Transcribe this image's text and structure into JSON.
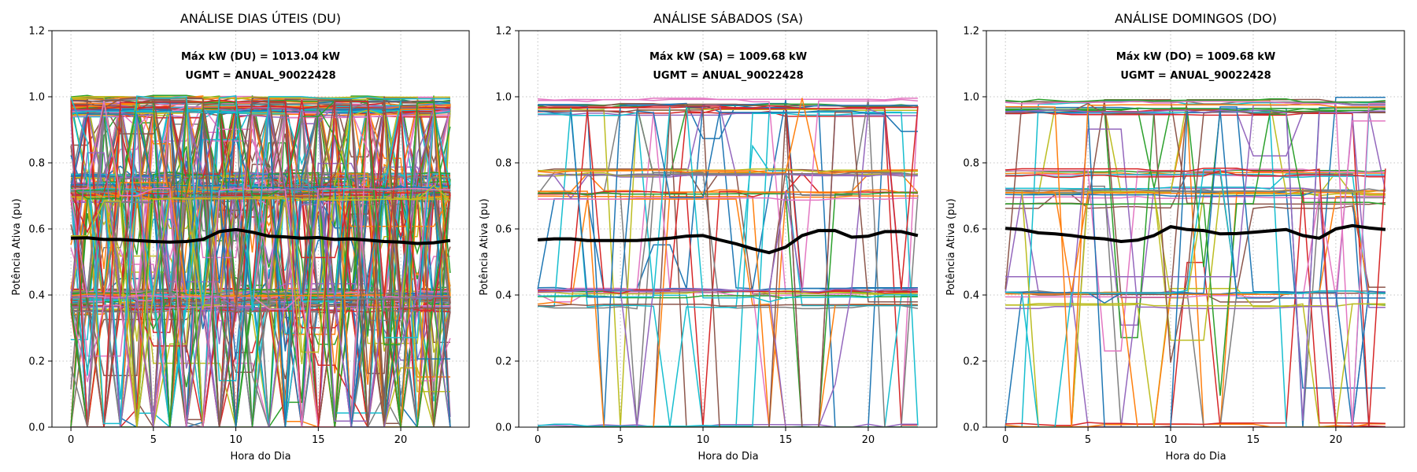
{
  "colors": {
    "palette": [
      "#1f77b4",
      "#ff7f0e",
      "#2ca02c",
      "#d62728",
      "#9467bd",
      "#8c564b",
      "#e377c2",
      "#7f7f7f",
      "#bcbd22",
      "#17becf"
    ],
    "mean_line": "#000000",
    "grid": "#b0b0b0"
  },
  "chart_data": [
    {
      "type": "line",
      "title": "ANÁLISE DIAS ÚTEIS (DU)",
      "xlabel": "Hora do Dia",
      "ylabel": "Potência Ativa (pu)",
      "xlim": [
        -1.15,
        24.15
      ],
      "ylim": [
        0,
        1.2
      ],
      "xticks": [
        0,
        5,
        10,
        15,
        20
      ],
      "yticks": [
        0.0,
        0.2,
        0.4,
        0.6,
        0.8,
        1.0,
        1.2
      ],
      "grid": true,
      "grid_style": "dotted",
      "annotations": [
        "Máx kW (DU) = 1013.04 kW",
        "UGMT = ANUAL_90022428"
      ],
      "x": [
        0,
        1,
        2,
        3,
        4,
        5,
        6,
        7,
        8,
        9,
        10,
        11,
        12,
        13,
        14,
        15,
        16,
        17,
        18,
        19,
        20,
        21,
        22,
        23
      ],
      "mean_series": {
        "color": "#000000",
        "values": [
          0.572,
          0.573,
          0.568,
          0.568,
          0.565,
          0.562,
          0.56,
          0.562,
          0.568,
          0.592,
          0.598,
          0.59,
          0.578,
          0.576,
          0.572,
          0.574,
          0.568,
          0.57,
          0.566,
          0.562,
          0.56,
          0.556,
          0.558,
          0.565
        ]
      },
      "background_series": {
        "count": 260,
        "levels": [
          0.99,
          0.97,
          0.96,
          0.95,
          0.76,
          0.73,
          0.72,
          0.71,
          0.7,
          0.69,
          0.41,
          0.4,
          0.39,
          0.37,
          0.36
        ],
        "behavior": "mostly flat at one level, with frequent jumps to other levels or to 0"
      }
    },
    {
      "type": "line",
      "title": "ANÁLISE SÁBADOS (SA)",
      "xlabel": "Hora do Dia",
      "ylabel": "Potência Ativa (pu)",
      "xlim": [
        -1.15,
        24.15
      ],
      "ylim": [
        0,
        1.2
      ],
      "xticks": [
        0,
        5,
        10,
        15,
        20
      ],
      "yticks": [
        0.0,
        0.2,
        0.4,
        0.6,
        0.8,
        1.0,
        1.2
      ],
      "grid": true,
      "grid_style": "dotted",
      "annotations": [
        "Máx kW (SA) = 1009.68 kW",
        "UGMT = ANUAL_90022428"
      ],
      "x": [
        0,
        1,
        2,
        3,
        4,
        5,
        6,
        7,
        8,
        9,
        10,
        11,
        12,
        13,
        14,
        15,
        16,
        17,
        18,
        19,
        20,
        21,
        22,
        23
      ],
      "mean_series": {
        "color": "#000000",
        "values": [
          0.567,
          0.57,
          0.57,
          0.565,
          0.565,
          0.565,
          0.565,
          0.568,
          0.572,
          0.578,
          0.58,
          0.567,
          0.555,
          0.54,
          0.528,
          0.545,
          0.58,
          0.595,
          0.595,
          0.575,
          0.578,
          0.592,
          0.592,
          0.58
        ]
      },
      "background_series": {
        "count": 55,
        "levels": [
          0.99,
          0.97,
          0.96,
          0.95,
          0.77,
          0.71,
          0.7,
          0.41,
          0.4,
          0.37,
          0.0
        ],
        "behavior": "mostly flat at one level, with occasional jumps to other levels or to 0"
      }
    },
    {
      "type": "line",
      "title": "ANÁLISE DOMINGOS (DO)",
      "xlabel": "Hora do Dia",
      "ylabel": "Potência Ativa (pu)",
      "xlim": [
        -1.15,
        24.15
      ],
      "ylim": [
        0,
        1.2
      ],
      "xticks": [
        0,
        5,
        10,
        15,
        20
      ],
      "yticks": [
        0.0,
        0.2,
        0.4,
        0.6,
        0.8,
        1.0,
        1.2
      ],
      "grid": true,
      "grid_style": "dotted",
      "annotations": [
        "Máx kW (DO) = 1009.68 kW",
        "UGMT = ANUAL_90022428"
      ],
      "x": [
        0,
        1,
        2,
        3,
        4,
        5,
        6,
        7,
        8,
        9,
        10,
        11,
        12,
        13,
        14,
        15,
        16,
        17,
        18,
        19,
        20,
        21,
        22,
        23
      ],
      "mean_series": {
        "color": "#000000",
        "values": [
          0.602,
          0.598,
          0.588,
          0.585,
          0.58,
          0.573,
          0.57,
          0.562,
          0.566,
          0.58,
          0.607,
          0.598,
          0.595,
          0.585,
          0.586,
          0.59,
          0.594,
          0.598,
          0.58,
          0.572,
          0.6,
          0.61,
          0.603,
          0.598
        ]
      },
      "background_series": {
        "count": 55,
        "levels": [
          0.99,
          0.97,
          0.96,
          0.95,
          0.77,
          0.72,
          0.71,
          0.7,
          0.67,
          0.41,
          0.4,
          0.37,
          0.0
        ],
        "behavior": "mostly flat at one level, with occasional jumps to other levels or to 0"
      }
    }
  ]
}
